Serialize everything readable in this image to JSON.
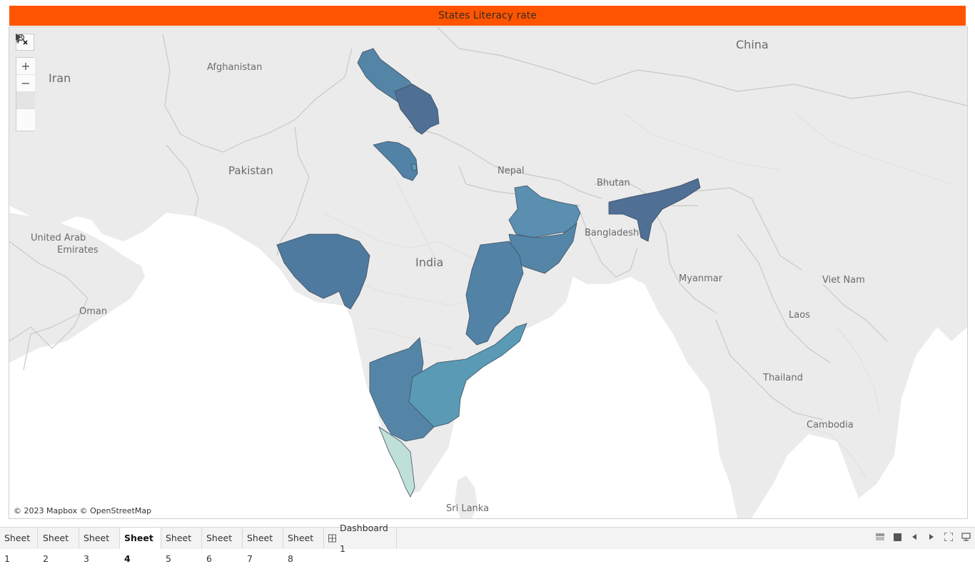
{
  "title": "States Literacy rate",
  "attribution": "© 2023 Mapbox © OpenStreetMap",
  "colors": {
    "title_bg": "#ff5500",
    "state_dark": "#4f6f95",
    "state_mid": "#5585a6",
    "state_light": "#5a9ab5",
    "state_lightest": "#bfe0d6",
    "land": "#ebebeb",
    "water": "#ffffff"
  },
  "map_labels": {
    "china": "China",
    "iran": "Iran",
    "afghanistan": "Afghanistan",
    "pakistan": "Pakistan",
    "nepal": "Nepal",
    "bhutan": "Bhutan",
    "bangladesh": "Bangladesh",
    "india": "India",
    "uae_1": "United Arab",
    "uae_2": "Emirates",
    "oman": "Oman",
    "myanmar": "Myanmar",
    "viet_nam": "Viet Nam",
    "laos": "Laos",
    "thailand": "Thailand",
    "cambodia": "Cambodia",
    "sri_lanka": "Sri Lanka"
  },
  "toolbar": {
    "search": "search-icon",
    "zoom_in": "+",
    "zoom_out": "−",
    "pin": "pin-icon",
    "expand": "play-icon"
  },
  "tabs": [
    {
      "label": "Sheet 1"
    },
    {
      "label": "Sheet 2"
    },
    {
      "label": "Sheet 3"
    },
    {
      "label": "Sheet 4",
      "active": true
    },
    {
      "label": "Sheet 5"
    },
    {
      "label": "Sheet 6"
    },
    {
      "label": "Sheet 7"
    },
    {
      "label": "Sheet 8"
    },
    {
      "label": "Dashboard 1"
    }
  ]
}
